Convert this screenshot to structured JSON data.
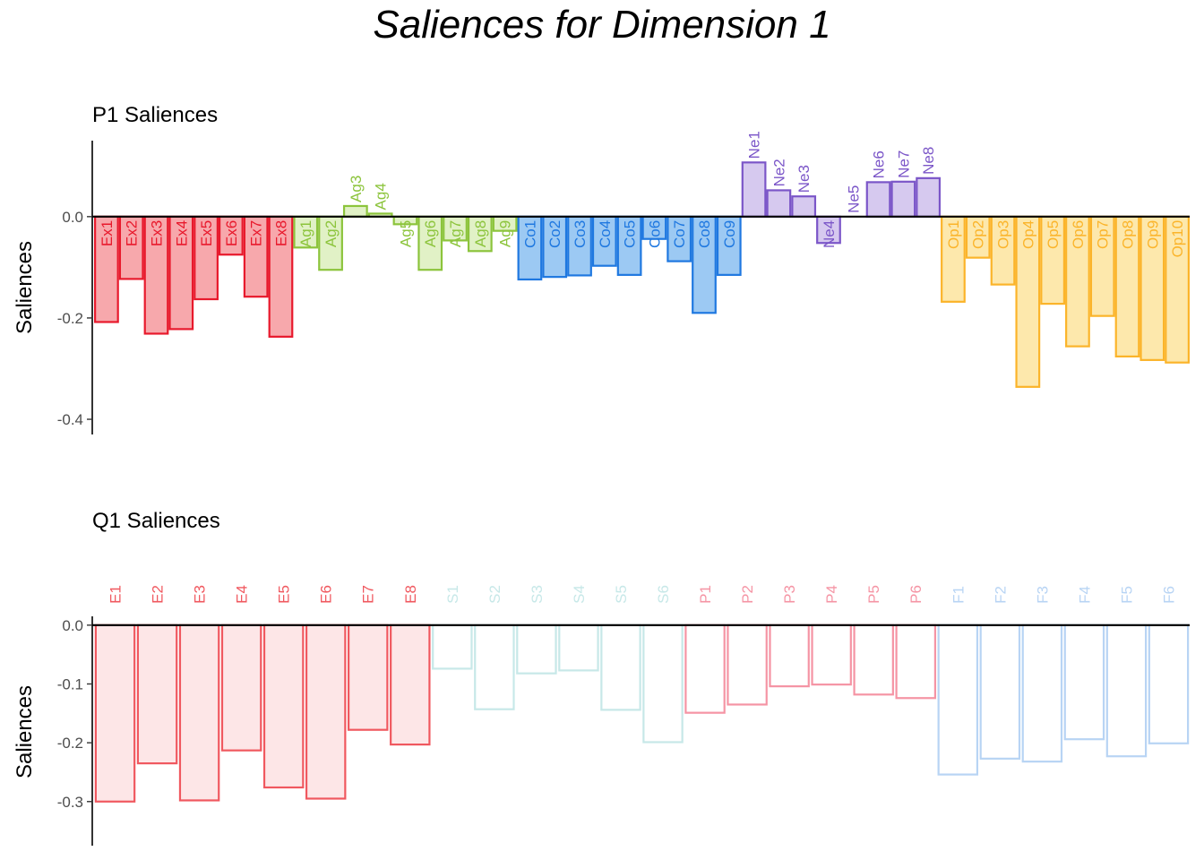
{
  "title": "Saliences for Dimension 1",
  "chart_data": [
    {
      "type": "bar",
      "title": "P1 Saliences",
      "ylabel": "Saliences",
      "ylim": [
        -0.43,
        0.15
      ],
      "yticks": [
        0.0,
        -0.2,
        -0.4
      ],
      "ytick_labels": [
        "0.0",
        "-0.2",
        "-0.4"
      ],
      "label_position": "alternating above/below baseline",
      "groups": [
        {
          "name": "Ex",
          "color": "#e8192c",
          "fill": "#f7a8ac"
        },
        {
          "name": "Ag",
          "color": "#8cc43c",
          "fill": "#e1f1c6"
        },
        {
          "name": "Co",
          "color": "#1f78e0",
          "fill": "#9cc9f3"
        },
        {
          "name": "Ne",
          "color": "#7b56c8",
          "fill": "#d6c9ef"
        },
        {
          "name": "Op",
          "color": "#fbb42a",
          "fill": "#fde8ac"
        }
      ],
      "categories": [
        "Ex1",
        "Ex2",
        "Ex3",
        "Ex4",
        "Ex5",
        "Ex6",
        "Ex7",
        "Ex8",
        "Ag1",
        "Ag2",
        "Ag3",
        "Ag4",
        "Ag5",
        "Ag6",
        "Ag7",
        "Ag8",
        "Ag9",
        "Co1",
        "Co2",
        "Co3",
        "Co4",
        "Co5",
        "Co6",
        "Co7",
        "Co8",
        "Co9",
        "Ne1",
        "Ne2",
        "Ne3",
        "Ne4",
        "Ne5",
        "Ne6",
        "Ne7",
        "Ne8",
        "Op1",
        "Op2",
        "Op3",
        "Op4",
        "Op5",
        "Op6",
        "Op7",
        "Op8",
        "Op9",
        "Op10"
      ],
      "group_of": [
        0,
        0,
        0,
        0,
        0,
        0,
        0,
        0,
        1,
        1,
        1,
        1,
        1,
        1,
        1,
        1,
        1,
        2,
        2,
        2,
        2,
        2,
        2,
        2,
        2,
        2,
        3,
        3,
        3,
        3,
        3,
        3,
        3,
        3,
        4,
        4,
        4,
        4,
        4,
        4,
        4,
        4,
        4,
        4
      ],
      "values": [
        -0.208,
        -0.123,
        -0.231,
        -0.222,
        -0.163,
        -0.075,
        -0.158,
        -0.237,
        -0.061,
        -0.105,
        0.021,
        0.006,
        -0.015,
        -0.105,
        -0.047,
        -0.068,
        -0.028,
        -0.124,
        -0.119,
        -0.116,
        -0.097,
        -0.115,
        -0.044,
        -0.088,
        -0.19,
        -0.115,
        0.107,
        0.052,
        0.04,
        -0.052,
        0.0,
        0.068,
        0.069,
        0.076,
        -0.168,
        -0.081,
        -0.134,
        -0.336,
        -0.172,
        -0.256,
        -0.196,
        -0.276,
        -0.283,
        -0.288
      ]
    },
    {
      "type": "bar",
      "title": "Q1 Saliences",
      "ylabel": "Saliences",
      "ylim": [
        -0.375,
        0.015
      ],
      "yticks": [
        0.0,
        -0.1,
        -0.2,
        -0.3
      ],
      "ytick_labels": [
        "0.0",
        "-0.1",
        "-0.2",
        "-0.3"
      ],
      "label_position": "above baseline",
      "groups": [
        {
          "name": "E",
          "color": "#f0585f",
          "fill": "#fde6e7"
        },
        {
          "name": "S",
          "color": "#c7e8e8",
          "fill": "#ffffff"
        },
        {
          "name": "P",
          "color": "#f594a4",
          "fill": "#ffffff"
        },
        {
          "name": "F",
          "color": "#b8d4f4",
          "fill": "#ffffff"
        }
      ],
      "categories": [
        "E1",
        "E2",
        "E3",
        "E4",
        "E5",
        "E6",
        "E7",
        "E8",
        "S1",
        "S2",
        "S3",
        "S4",
        "S5",
        "S6",
        "P1",
        "P2",
        "P3",
        "P4",
        "P5",
        "P6",
        "F1",
        "F2",
        "F3",
        "F4",
        "F5",
        "F6"
      ],
      "group_of": [
        0,
        0,
        0,
        0,
        0,
        0,
        0,
        0,
        1,
        1,
        1,
        1,
        1,
        1,
        2,
        2,
        2,
        2,
        2,
        2,
        3,
        3,
        3,
        3,
        3,
        3
      ],
      "values": [
        -0.3,
        -0.235,
        -0.298,
        -0.213,
        -0.276,
        -0.295,
        -0.178,
        -0.203,
        -0.074,
        -0.143,
        -0.082,
        -0.077,
        -0.144,
        -0.199,
        -0.149,
        -0.135,
        -0.104,
        -0.101,
        -0.118,
        -0.124,
        -0.254,
        -0.227,
        -0.232,
        -0.194,
        -0.223,
        -0.201
      ]
    }
  ]
}
